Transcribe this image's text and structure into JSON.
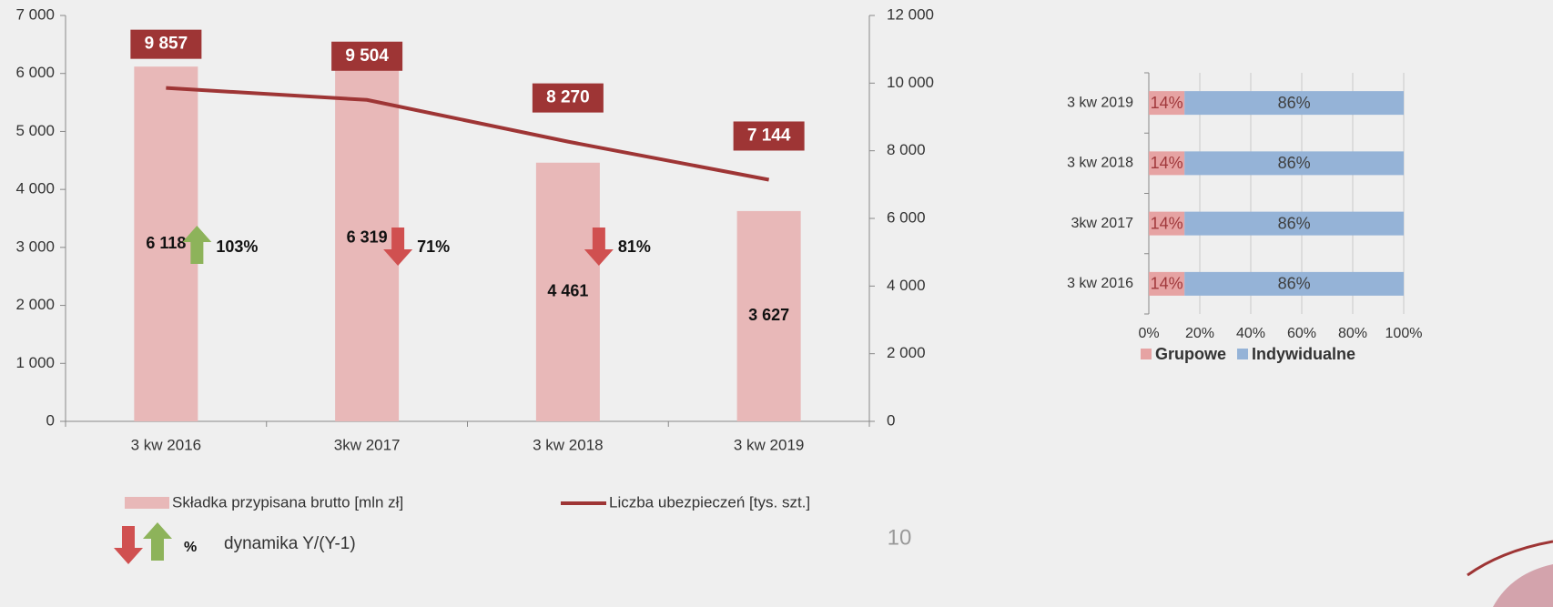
{
  "chart_data": [
    {
      "type": "bar",
      "categories": [
        "3 kw 2016",
        "3kw 2017",
        "3 kw 2018",
        "3 kw 2019"
      ],
      "series": [
        {
          "name": "Składka przypisana brutto [mln zł]",
          "type": "bar",
          "color": "#e8b8b8",
          "values": [
            6118,
            6319,
            4461,
            3627
          ],
          "value_labels": [
            "6 118",
            "6 319",
            "4 461",
            "3 627"
          ]
        },
        {
          "name": "Liczba ubezpieczeń [tys. szt.]",
          "type": "line",
          "axis": "y2",
          "color": "#9e3535",
          "values": [
            9857,
            9504,
            8270,
            7144
          ],
          "value_labels": [
            "9 857",
            "9 504",
            "8 270",
            "7 144"
          ]
        }
      ],
      "ylim": [
        0,
        7000
      ],
      "yticks": [
        0,
        {
          "value": 1000,
          "label": "1 000"
        },
        {
          "value": 2000,
          "label": "2 000"
        },
        {
          "value": 3000,
          "label": "3 000"
        },
        {
          "value": 4000,
          "label": "4 000"
        },
        {
          "value": 5000,
          "label": "5 000"
        },
        {
          "value": 6000,
          "label": "6 000"
        },
        {
          "value": 7000,
          "label": "7 000"
        }
      ],
      "y2lim": [
        0,
        12000
      ],
      "y2ticks": [
        0,
        {
          "value": 2000,
          "label": "2 000"
        },
        {
          "value": 4000,
          "label": "4 000"
        },
        {
          "value": 6000,
          "label": "6 000"
        },
        {
          "value": 8000,
          "label": "8 000"
        },
        {
          "value": 10000,
          "label": "10 000"
        },
        {
          "value": 12000,
          "label": "12 000"
        }
      ],
      "dynamics": {
        "values": [
          103,
          71,
          81
        ],
        "value_labels": [
          "103%",
          "71%",
          "81%"
        ],
        "legend_symbol": "%",
        "legend_label": "dynamika Y/(Y-1)",
        "up_color": "#8db35a",
        "down_color": "#d05050"
      }
    },
    {
      "type": "bar",
      "orientation": "horizontal",
      "stacked": true,
      "categories": [
        "3 kw 2019",
        "3 kw 2018",
        "3kw 2017",
        "3 kw 2016"
      ],
      "series": [
        {
          "name": "Grupowe",
          "color": "#e6a3a3",
          "label_color": "#a0383b",
          "values": [
            14,
            14,
            14,
            14
          ],
          "value_labels": [
            "14%",
            "14%",
            "14%",
            "14%"
          ]
        },
        {
          "name": "Indywidualne",
          "color": "#95b3d7",
          "label_color": "#404040",
          "values": [
            86,
            86,
            86,
            86
          ],
          "value_labels": [
            "86%",
            "86%",
            "86%",
            "86%"
          ]
        }
      ],
      "xlim": [
        0,
        100
      ],
      "xticks": [
        {
          "value": 0,
          "label": "0%"
        },
        {
          "value": 20,
          "label": "20%"
        },
        {
          "value": 40,
          "label": "40%"
        },
        {
          "value": 60,
          "label": "60%"
        },
        {
          "value": 80,
          "label": "80%"
        },
        {
          "value": 100,
          "label": "100%"
        }
      ],
      "grid": true
    }
  ],
  "page_number": "10"
}
